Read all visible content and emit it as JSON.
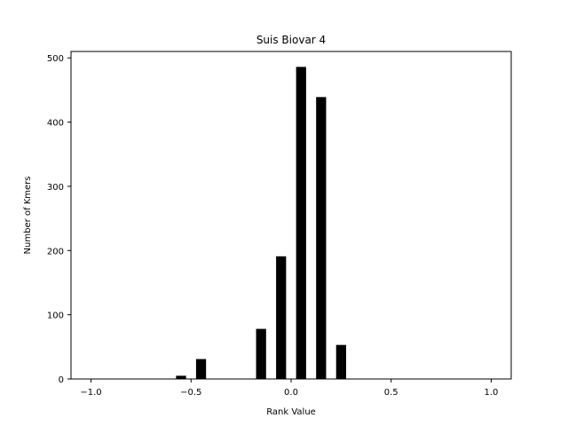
{
  "chart_data": {
    "type": "bar",
    "title": "Suis Biovar 4",
    "xlabel": "Rank Value",
    "ylabel": "Number of Kmers",
    "xlim": [
      -1.1,
      1.1
    ],
    "ylim": [
      0,
      510
    ],
    "xticks": [
      -1.0,
      -0.5,
      0.0,
      0.5,
      1.0
    ],
    "xtick_labels": [
      "−1.0",
      "−0.5",
      "0.0",
      "0.5",
      "1.0"
    ],
    "yticks": [
      0,
      100,
      200,
      300,
      400,
      500
    ],
    "ytick_labels": [
      "0",
      "100",
      "200",
      "300",
      "400",
      "500"
    ],
    "bar_width": 0.05,
    "bar_color": "#000000",
    "bars": [
      {
        "x": -0.55,
        "value": 5
      },
      {
        "x": -0.45,
        "value": 31
      },
      {
        "x": -0.15,
        "value": 78
      },
      {
        "x": -0.05,
        "value": 191
      },
      {
        "x": 0.05,
        "value": 486
      },
      {
        "x": 0.15,
        "value": 439
      },
      {
        "x": 0.25,
        "value": 53
      }
    ],
    "grid": false,
    "legend": false
  }
}
